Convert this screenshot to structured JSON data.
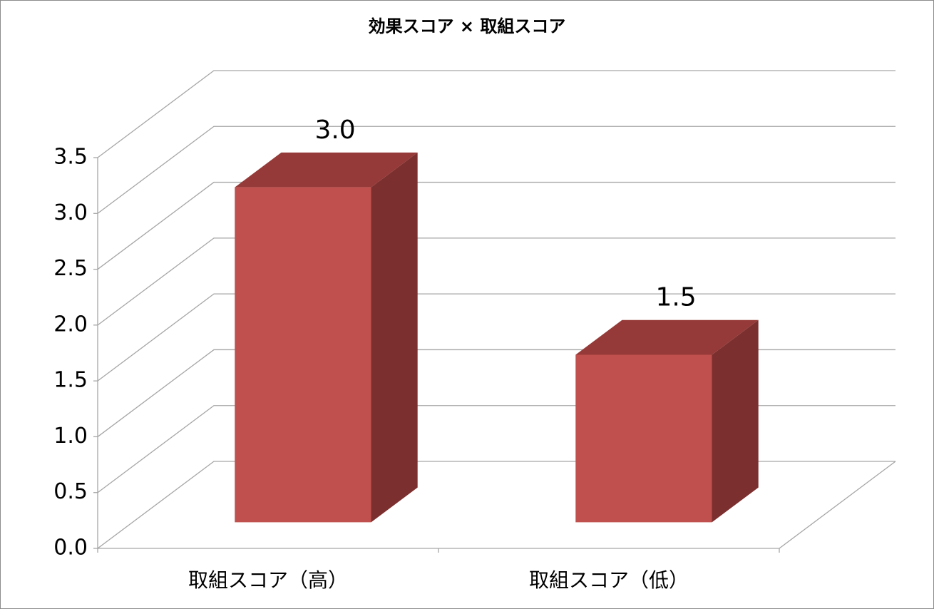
{
  "chart_data": {
    "type": "bar3d",
    "title": "効果スコア × 取組スコア",
    "categories": [
      "取組スコア（高）",
      "取組スコア（低）"
    ],
    "values": [
      3.0,
      1.5
    ],
    "value_labels": [
      "3.0",
      "1.5"
    ],
    "color": "#c0504d",
    "ylim": [
      0,
      3.5
    ],
    "yticks": [
      {
        "value": 0,
        "label": "0.0"
      },
      0.5,
      {
        "value": 1,
        "label": "1.0"
      },
      1.5,
      {
        "value": 2,
        "label": "2.0"
      },
      2.5,
      {
        "value": 3,
        "label": "3.0"
      },
      3.5
    ],
    "grid": true
  }
}
